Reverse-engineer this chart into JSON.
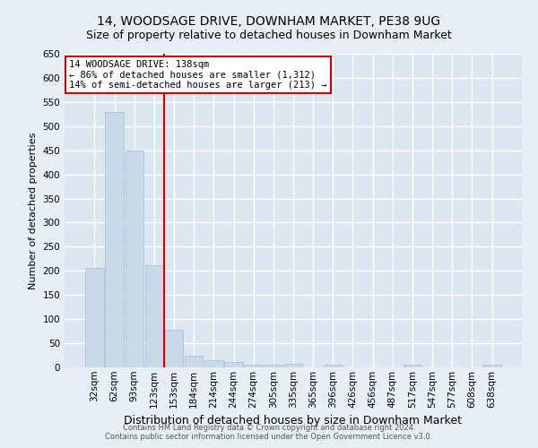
{
  "title": "14, WOODSAGE DRIVE, DOWNHAM MARKET, PE38 9UG",
  "subtitle": "Size of property relative to detached houses in Downham Market",
  "xlabel": "Distribution of detached houses by size in Downham Market",
  "ylabel": "Number of detached properties",
  "categories": [
    "32sqm",
    "62sqm",
    "93sqm",
    "123sqm",
    "153sqm",
    "184sqm",
    "214sqm",
    "244sqm",
    "274sqm",
    "305sqm",
    "335sqm",
    "365sqm",
    "396sqm",
    "426sqm",
    "456sqm",
    "487sqm",
    "517sqm",
    "547sqm",
    "577sqm",
    "608sqm",
    "638sqm"
  ],
  "values": [
    207,
    530,
    450,
    212,
    78,
    25,
    14,
    11,
    6,
    6,
    8,
    0,
    6,
    0,
    0,
    0,
    6,
    0,
    0,
    0,
    6
  ],
  "bar_color": "#c9d9ea",
  "bar_edgecolor": "#a8bdd0",
  "background_color": "#e8eef5",
  "plot_background": "#dce6f0",
  "grid_color": "#ffffff",
  "red_line_color": "#cc0000",
  "red_line_x": 3.5,
  "annotation_text_line1": "14 WOODSAGE DRIVE: 138sqm",
  "annotation_text_line2": "← 86% of detached houses are smaller (1,312)",
  "annotation_text_line3": "14% of semi-detached houses are larger (213) →",
  "annotation_box_facecolor": "#ffffff",
  "annotation_box_edgecolor": "#cc0000",
  "ylim": [
    0,
    650
  ],
  "yticks": [
    0,
    50,
    100,
    150,
    200,
    250,
    300,
    350,
    400,
    450,
    500,
    550,
    600,
    650
  ],
  "footer_line1": "Contains HM Land Registry data © Crown copyright and database right 2024.",
  "footer_line2": "Contains public sector information licensed under the Open Government Licence v3.0.",
  "title_fontsize": 10,
  "subtitle_fontsize": 9,
  "ylabel_fontsize": 8,
  "xlabel_fontsize": 9,
  "tick_fontsize": 7.5,
  "annotation_fontsize": 7.5,
  "footer_fontsize": 6
}
